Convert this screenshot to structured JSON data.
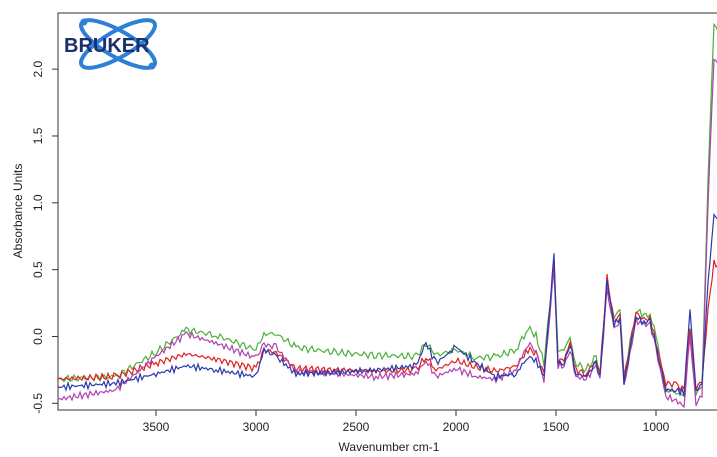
{
  "logo": {
    "text": "BRUKER"
  },
  "chart_data": {
    "type": "line",
    "xlabel": "Wavenumber cm-1",
    "ylabel": "Absorbance Units",
    "xlim": [
      3990,
      680
    ],
    "ylim": [
      -0.55,
      2.42
    ],
    "x_reversed": true,
    "grid": false,
    "x_ticks": [
      3500,
      3000,
      2500,
      2000,
      1500,
      1000
    ],
    "y_ticks": [
      -0.5,
      0.0,
      0.5,
      1.0,
      1.5,
      2.0
    ],
    "x_tick_labels": [
      "3500",
      "3000",
      "2500",
      "2000",
      "1500",
      "1000"
    ],
    "y_tick_labels": [
      "-0.5",
      "0.0",
      "0.5",
      "1.0",
      "1.5",
      "2.0"
    ],
    "series": [
      {
        "color": "#4caf3a",
        "values": [
          [
            3990,
            -0.32
          ],
          [
            3700,
            -0.3
          ],
          [
            3500,
            -0.12
          ],
          [
            3350,
            0.05
          ],
          [
            3200,
            0.01
          ],
          [
            3000,
            -0.1
          ],
          [
            2960,
            0.02
          ],
          [
            2900,
            0.02
          ],
          [
            2800,
            -0.08
          ],
          [
            2600,
            -0.12
          ],
          [
            2400,
            -0.14
          ],
          [
            2200,
            -0.15
          ],
          [
            2150,
            -0.05
          ],
          [
            2100,
            -0.14
          ],
          [
            2000,
            -0.1
          ],
          [
            1900,
            -0.16
          ],
          [
            1800,
            -0.15
          ],
          [
            1700,
            -0.1
          ],
          [
            1640,
            0.06
          ],
          [
            1600,
            0.01
          ],
          [
            1560,
            -0.2
          ],
          [
            1510,
            0.55
          ],
          [
            1490,
            -0.1
          ],
          [
            1460,
            -0.1
          ],
          [
            1430,
            -0.02
          ],
          [
            1400,
            -0.2
          ],
          [
            1350,
            -0.25
          ],
          [
            1300,
            -0.15
          ],
          [
            1280,
            -0.25
          ],
          [
            1245,
            0.4
          ],
          [
            1210,
            0.15
          ],
          [
            1180,
            0.2
          ],
          [
            1160,
            -0.3
          ],
          [
            1100,
            0.2
          ],
          [
            1060,
            0.15
          ],
          [
            1030,
            0.18
          ],
          [
            1000,
            0.0
          ],
          [
            950,
            -0.4
          ],
          [
            900,
            -0.42
          ],
          [
            860,
            -0.45
          ],
          [
            830,
            0.05
          ],
          [
            800,
            -0.42
          ],
          [
            770,
            -0.4
          ],
          [
            740,
            1.2
          ],
          [
            710,
            2.32
          ],
          [
            680,
            2.28
          ]
        ]
      },
      {
        "color": "#e02020",
        "values": [
          [
            3990,
            -0.32
          ],
          [
            3700,
            -0.3
          ],
          [
            3500,
            -0.2
          ],
          [
            3350,
            -0.13
          ],
          [
            3200,
            -0.17
          ],
          [
            3000,
            -0.24
          ],
          [
            2960,
            -0.1
          ],
          [
            2900,
            -0.12
          ],
          [
            2800,
            -0.24
          ],
          [
            2600,
            -0.25
          ],
          [
            2400,
            -0.26
          ],
          [
            2200,
            -0.25
          ],
          [
            2150,
            -0.15
          ],
          [
            2100,
            -0.25
          ],
          [
            2000,
            -0.18
          ],
          [
            1900,
            -0.23
          ],
          [
            1800,
            -0.26
          ],
          [
            1700,
            -0.22
          ],
          [
            1640,
            -0.1
          ],
          [
            1600,
            -0.12
          ],
          [
            1560,
            -0.28
          ],
          [
            1510,
            0.55
          ],
          [
            1490,
            -0.18
          ],
          [
            1460,
            -0.18
          ],
          [
            1430,
            -0.05
          ],
          [
            1400,
            -0.25
          ],
          [
            1350,
            -0.28
          ],
          [
            1300,
            -0.18
          ],
          [
            1280,
            -0.28
          ],
          [
            1245,
            0.45
          ],
          [
            1210,
            0.1
          ],
          [
            1180,
            0.18
          ],
          [
            1160,
            -0.32
          ],
          [
            1100,
            0.18
          ],
          [
            1060,
            0.12
          ],
          [
            1030,
            0.15
          ],
          [
            1000,
            -0.05
          ],
          [
            950,
            -0.35
          ],
          [
            900,
            -0.36
          ],
          [
            860,
            -0.4
          ],
          [
            830,
            0.05
          ],
          [
            800,
            -0.38
          ],
          [
            770,
            -0.35
          ],
          [
            740,
            0.2
          ],
          [
            710,
            0.55
          ],
          [
            680,
            0.53
          ]
        ]
      },
      {
        "color": "#b040b0",
        "values": [
          [
            3990,
            -0.47
          ],
          [
            3700,
            -0.4
          ],
          [
            3500,
            -0.15
          ],
          [
            3350,
            0.02
          ],
          [
            3200,
            -0.05
          ],
          [
            3000,
            -0.16
          ],
          [
            2960,
            -0.06
          ],
          [
            2900,
            -0.08
          ],
          [
            2800,
            -0.26
          ],
          [
            2600,
            -0.28
          ],
          [
            2400,
            -0.3
          ],
          [
            2200,
            -0.28
          ],
          [
            2150,
            -0.18
          ],
          [
            2100,
            -0.3
          ],
          [
            2000,
            -0.24
          ],
          [
            1900,
            -0.3
          ],
          [
            1800,
            -0.32
          ],
          [
            1700,
            -0.25
          ],
          [
            1640,
            -0.05
          ],
          [
            1600,
            -0.1
          ],
          [
            1560,
            -0.32
          ],
          [
            1510,
            0.5
          ],
          [
            1490,
            -0.22
          ],
          [
            1460,
            -0.22
          ],
          [
            1430,
            -0.1
          ],
          [
            1400,
            -0.3
          ],
          [
            1350,
            -0.32
          ],
          [
            1300,
            -0.22
          ],
          [
            1280,
            -0.32
          ],
          [
            1245,
            0.35
          ],
          [
            1210,
            0.05
          ],
          [
            1180,
            0.12
          ],
          [
            1160,
            -0.38
          ],
          [
            1100,
            0.12
          ],
          [
            1060,
            0.08
          ],
          [
            1030,
            0.1
          ],
          [
            1000,
            -0.1
          ],
          [
            950,
            -0.45
          ],
          [
            900,
            -0.48
          ],
          [
            860,
            -0.52
          ],
          [
            830,
            0.0
          ],
          [
            800,
            -0.5
          ],
          [
            770,
            -0.45
          ],
          [
            740,
            1.0
          ],
          [
            710,
            2.08
          ],
          [
            680,
            2.02
          ]
        ]
      },
      {
        "color": "#2a3aa8",
        "values": [
          [
            3990,
            -0.38
          ],
          [
            3700,
            -0.35
          ],
          [
            3500,
            -0.28
          ],
          [
            3350,
            -0.22
          ],
          [
            3200,
            -0.25
          ],
          [
            3000,
            -0.3
          ],
          [
            2960,
            -0.1
          ],
          [
            2900,
            -0.15
          ],
          [
            2800,
            -0.28
          ],
          [
            2600,
            -0.27
          ],
          [
            2400,
            -0.25
          ],
          [
            2200,
            -0.22
          ],
          [
            2150,
            -0.05
          ],
          [
            2100,
            -0.2
          ],
          [
            2000,
            -0.08
          ],
          [
            1900,
            -0.2
          ],
          [
            1800,
            -0.3
          ],
          [
            1700,
            -0.28
          ],
          [
            1640,
            -0.15
          ],
          [
            1600,
            -0.18
          ],
          [
            1560,
            -0.3
          ],
          [
            1510,
            0.6
          ],
          [
            1490,
            -0.2
          ],
          [
            1460,
            -0.2
          ],
          [
            1430,
            -0.05
          ],
          [
            1400,
            -0.28
          ],
          [
            1350,
            -0.3
          ],
          [
            1300,
            -0.2
          ],
          [
            1280,
            -0.3
          ],
          [
            1245,
            0.42
          ],
          [
            1210,
            0.08
          ],
          [
            1180,
            0.16
          ],
          [
            1160,
            -0.35
          ],
          [
            1100,
            0.15
          ],
          [
            1060,
            0.1
          ],
          [
            1030,
            0.12
          ],
          [
            1000,
            -0.08
          ],
          [
            950,
            -0.4
          ],
          [
            900,
            -0.4
          ],
          [
            860,
            -0.42
          ],
          [
            830,
            0.2
          ],
          [
            800,
            -0.4
          ],
          [
            770,
            -0.38
          ],
          [
            740,
            0.4
          ],
          [
            710,
            0.9
          ],
          [
            680,
            0.88
          ]
        ]
      }
    ]
  }
}
